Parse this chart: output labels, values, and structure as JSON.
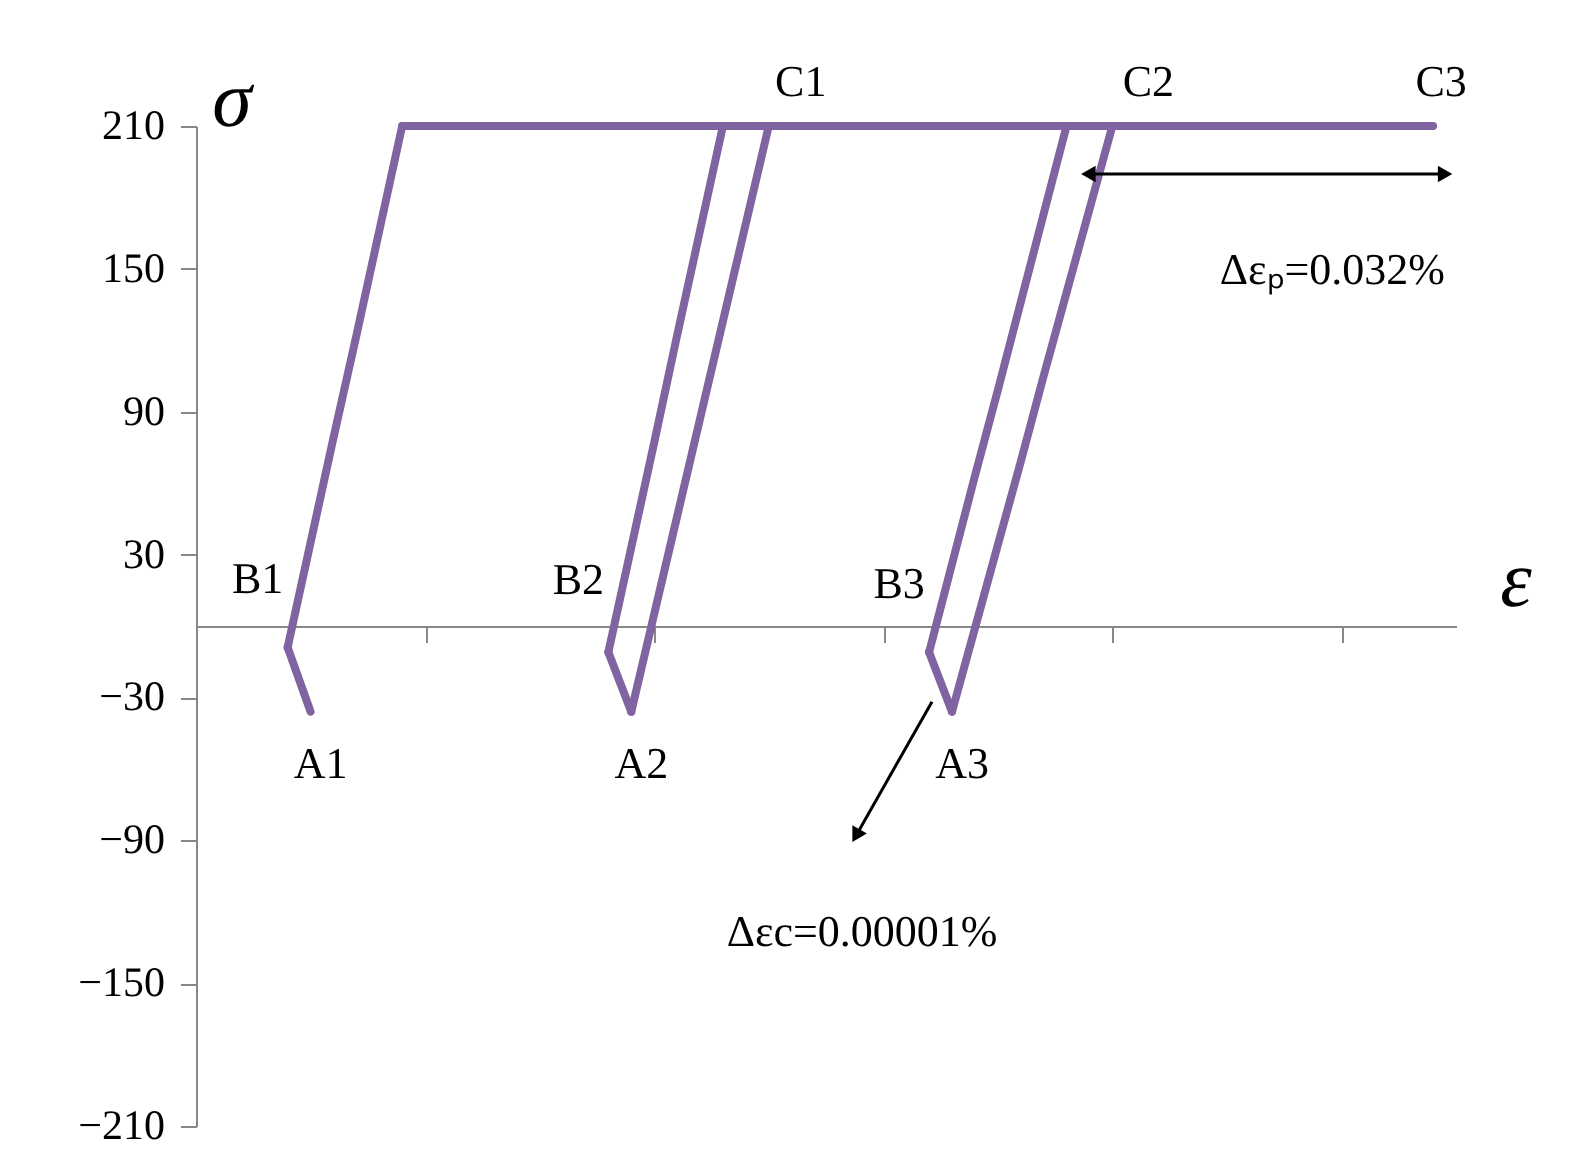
{
  "chart_data": {
    "type": "line",
    "xlabel": "ε",
    "ylabel": "σ",
    "categories": [
      null,
      null,
      null,
      null,
      null,
      null,
      null,
      null,
      null,
      null,
      null,
      null,
      null,
      null,
      null,
      null,
      null,
      null,
      null,
      null,
      null,
      null,
      null,
      null,
      null,
      null,
      null,
      null,
      null,
      null,
      null,
      null,
      null,
      null,
      null,
      null,
      null,
      null,
      null,
      null,
      null,
      null,
      null,
      null,
      null,
      null,
      null,
      null,
      null,
      null,
      null,
      null,
      null,
      null,
      null,
      null
    ],
    "series": [
      {
        "color": "#8064a2",
        "values": [
          null,
          null,
          null,
          null,
          -9,
          -36,
          null,
          null,
          null,
          null,
          null,
          null,
          null,
          null,
          null,
          null,
          null,
          null,
          null,
          null,
          null,
          null,
          null,
          null,
          null,
          null,
          null,
          null,
          null,
          null,
          null,
          null,
          null,
          null,
          null,
          null,
          null,
          null,
          null,
          null,
          null,
          null,
          null,
          null,
          null,
          null,
          null,
          null,
          null,
          null,
          null,
          null,
          null,
          null,
          null,
          null
        ]
      },
      {
        "color": "#8064a2",
        "values": [
          null,
          null,
          null,
          null,
          -9,
          35,
          79,
          122,
          166,
          210,
          null,
          null,
          null,
          null,
          null,
          null,
          null,
          null,
          null,
          null,
          null,
          null,
          null,
          null,
          null,
          null,
          null,
          null,
          null,
          null,
          null,
          null,
          null,
          null,
          null,
          null,
          null,
          null,
          null,
          null,
          null,
          null,
          null,
          null,
          null,
          null,
          null,
          null,
          null,
          null,
          null,
          null,
          null,
          null,
          null,
          null
        ]
      },
      {
        "color": "#8064a2",
        "values": [
          null,
          null,
          null,
          null,
          null,
          null,
          null,
          null,
          null,
          210,
          210,
          210,
          210,
          210,
          210,
          210,
          210,
          210,
          210,
          210,
          210,
          210,
          210,
          210,
          210,
          210,
          210,
          210,
          210,
          210,
          210,
          210,
          210,
          210,
          210,
          210,
          210,
          210,
          210,
          210,
          210,
          210,
          210,
          210,
          210,
          210,
          210,
          210,
          210,
          210,
          210,
          210,
          210,
          210,
          210,
          null
        ]
      },
      {
        "color": "#8064a2",
        "values": [
          null,
          null,
          null,
          null,
          null,
          null,
          null,
          null,
          null,
          null,
          null,
          null,
          null,
          null,
          null,
          null,
          null,
          null,
          -11,
          -36,
          null,
          null,
          null,
          null,
          null,
          null,
          null,
          null,
          null,
          null,
          null,
          null,
          null,
          null,
          null,
          null,
          null,
          null,
          null,
          null,
          null,
          null,
          null,
          null,
          null,
          null,
          null,
          null,
          null,
          null,
          null,
          null,
          null,
          null,
          null,
          null
        ]
      },
      {
        "color": "#8064a2",
        "values": [
          null,
          null,
          null,
          null,
          null,
          null,
          null,
          null,
          null,
          null,
          null,
          null,
          null,
          null,
          null,
          null,
          null,
          null,
          null,
          -36,
          5,
          46,
          87,
          128,
          169,
          210,
          null,
          null,
          null,
          null,
          null,
          null,
          null,
          null,
          null,
          null,
          null,
          null,
          null,
          null,
          null,
          null,
          null,
          null,
          null,
          null,
          null,
          null,
          null,
          null,
          null,
          null,
          null,
          null,
          null,
          null
        ]
      },
      {
        "color": "#8064a2",
        "values": [
          null,
          null,
          null,
          null,
          null,
          null,
          null,
          null,
          null,
          null,
          null,
          null,
          null,
          null,
          null,
          null,
          null,
          null,
          -11,
          33,
          77,
          122,
          166,
          210,
          null,
          null,
          null,
          null,
          null,
          null,
          null,
          null,
          null,
          null,
          null,
          null,
          null,
          null,
          null,
          null,
          null,
          null,
          null,
          null,
          null,
          null,
          null,
          null,
          null,
          null,
          null,
          null,
          null,
          null,
          null,
          null
        ]
      },
      {
        "color": "#8064a2",
        "values": [
          null,
          null,
          null,
          null,
          null,
          null,
          null,
          null,
          null,
          null,
          null,
          null,
          null,
          null,
          null,
          null,
          null,
          null,
          null,
          null,
          null,
          null,
          null,
          null,
          null,
          null,
          null,
          null,
          null,
          null,
          null,
          null,
          -11,
          -36,
          null,
          null,
          null,
          null,
          null,
          null,
          null,
          null,
          null,
          null,
          null,
          null,
          null,
          null,
          null,
          null,
          null,
          null,
          null,
          null,
          null,
          null
        ]
      },
      {
        "color": "#8064a2",
        "values": [
          null,
          null,
          null,
          null,
          null,
          null,
          null,
          null,
          null,
          null,
          null,
          null,
          null,
          null,
          null,
          null,
          null,
          null,
          null,
          null,
          null,
          null,
          null,
          null,
          null,
          null,
          null,
          null,
          null,
          null,
          null,
          null,
          null,
          -36,
          -1,
          34,
          69,
          105,
          140,
          175,
          210,
          null,
          null,
          null,
          null,
          null,
          null,
          null,
          null,
          null,
          null,
          null,
          null,
          null,
          null,
          null
        ]
      },
      {
        "color": "#8064a2",
        "values": [
          null,
          null,
          null,
          null,
          null,
          null,
          null,
          null,
          null,
          null,
          null,
          null,
          null,
          null,
          null,
          null,
          null,
          null,
          null,
          null,
          null,
          null,
          null,
          null,
          null,
          null,
          null,
          null,
          null,
          null,
          null,
          null,
          -11,
          26,
          63,
          99,
          136,
          173,
          210,
          null,
          null,
          null,
          null,
          null,
          null,
          null,
          null,
          null,
          null,
          null,
          null,
          null,
          null,
          null,
          null,
          null
        ]
      }
    ],
    "ylim": [
      -210,
      210
    ],
    "yticks": [
      -210,
      -150,
      -90,
      -30,
      30,
      90,
      150,
      210
    ],
    "tick_labels": "y",
    "grid": false,
    "marker": "none",
    "line_style": "solid",
    "annotations": [
      "A1",
      "A2",
      "A3",
      "B1",
      "B2",
      "B3",
      "C1",
      "C2",
      "C3",
      "Δεₚ=0.032%",
      "Δεc=0.00001%"
    ]
  }
}
